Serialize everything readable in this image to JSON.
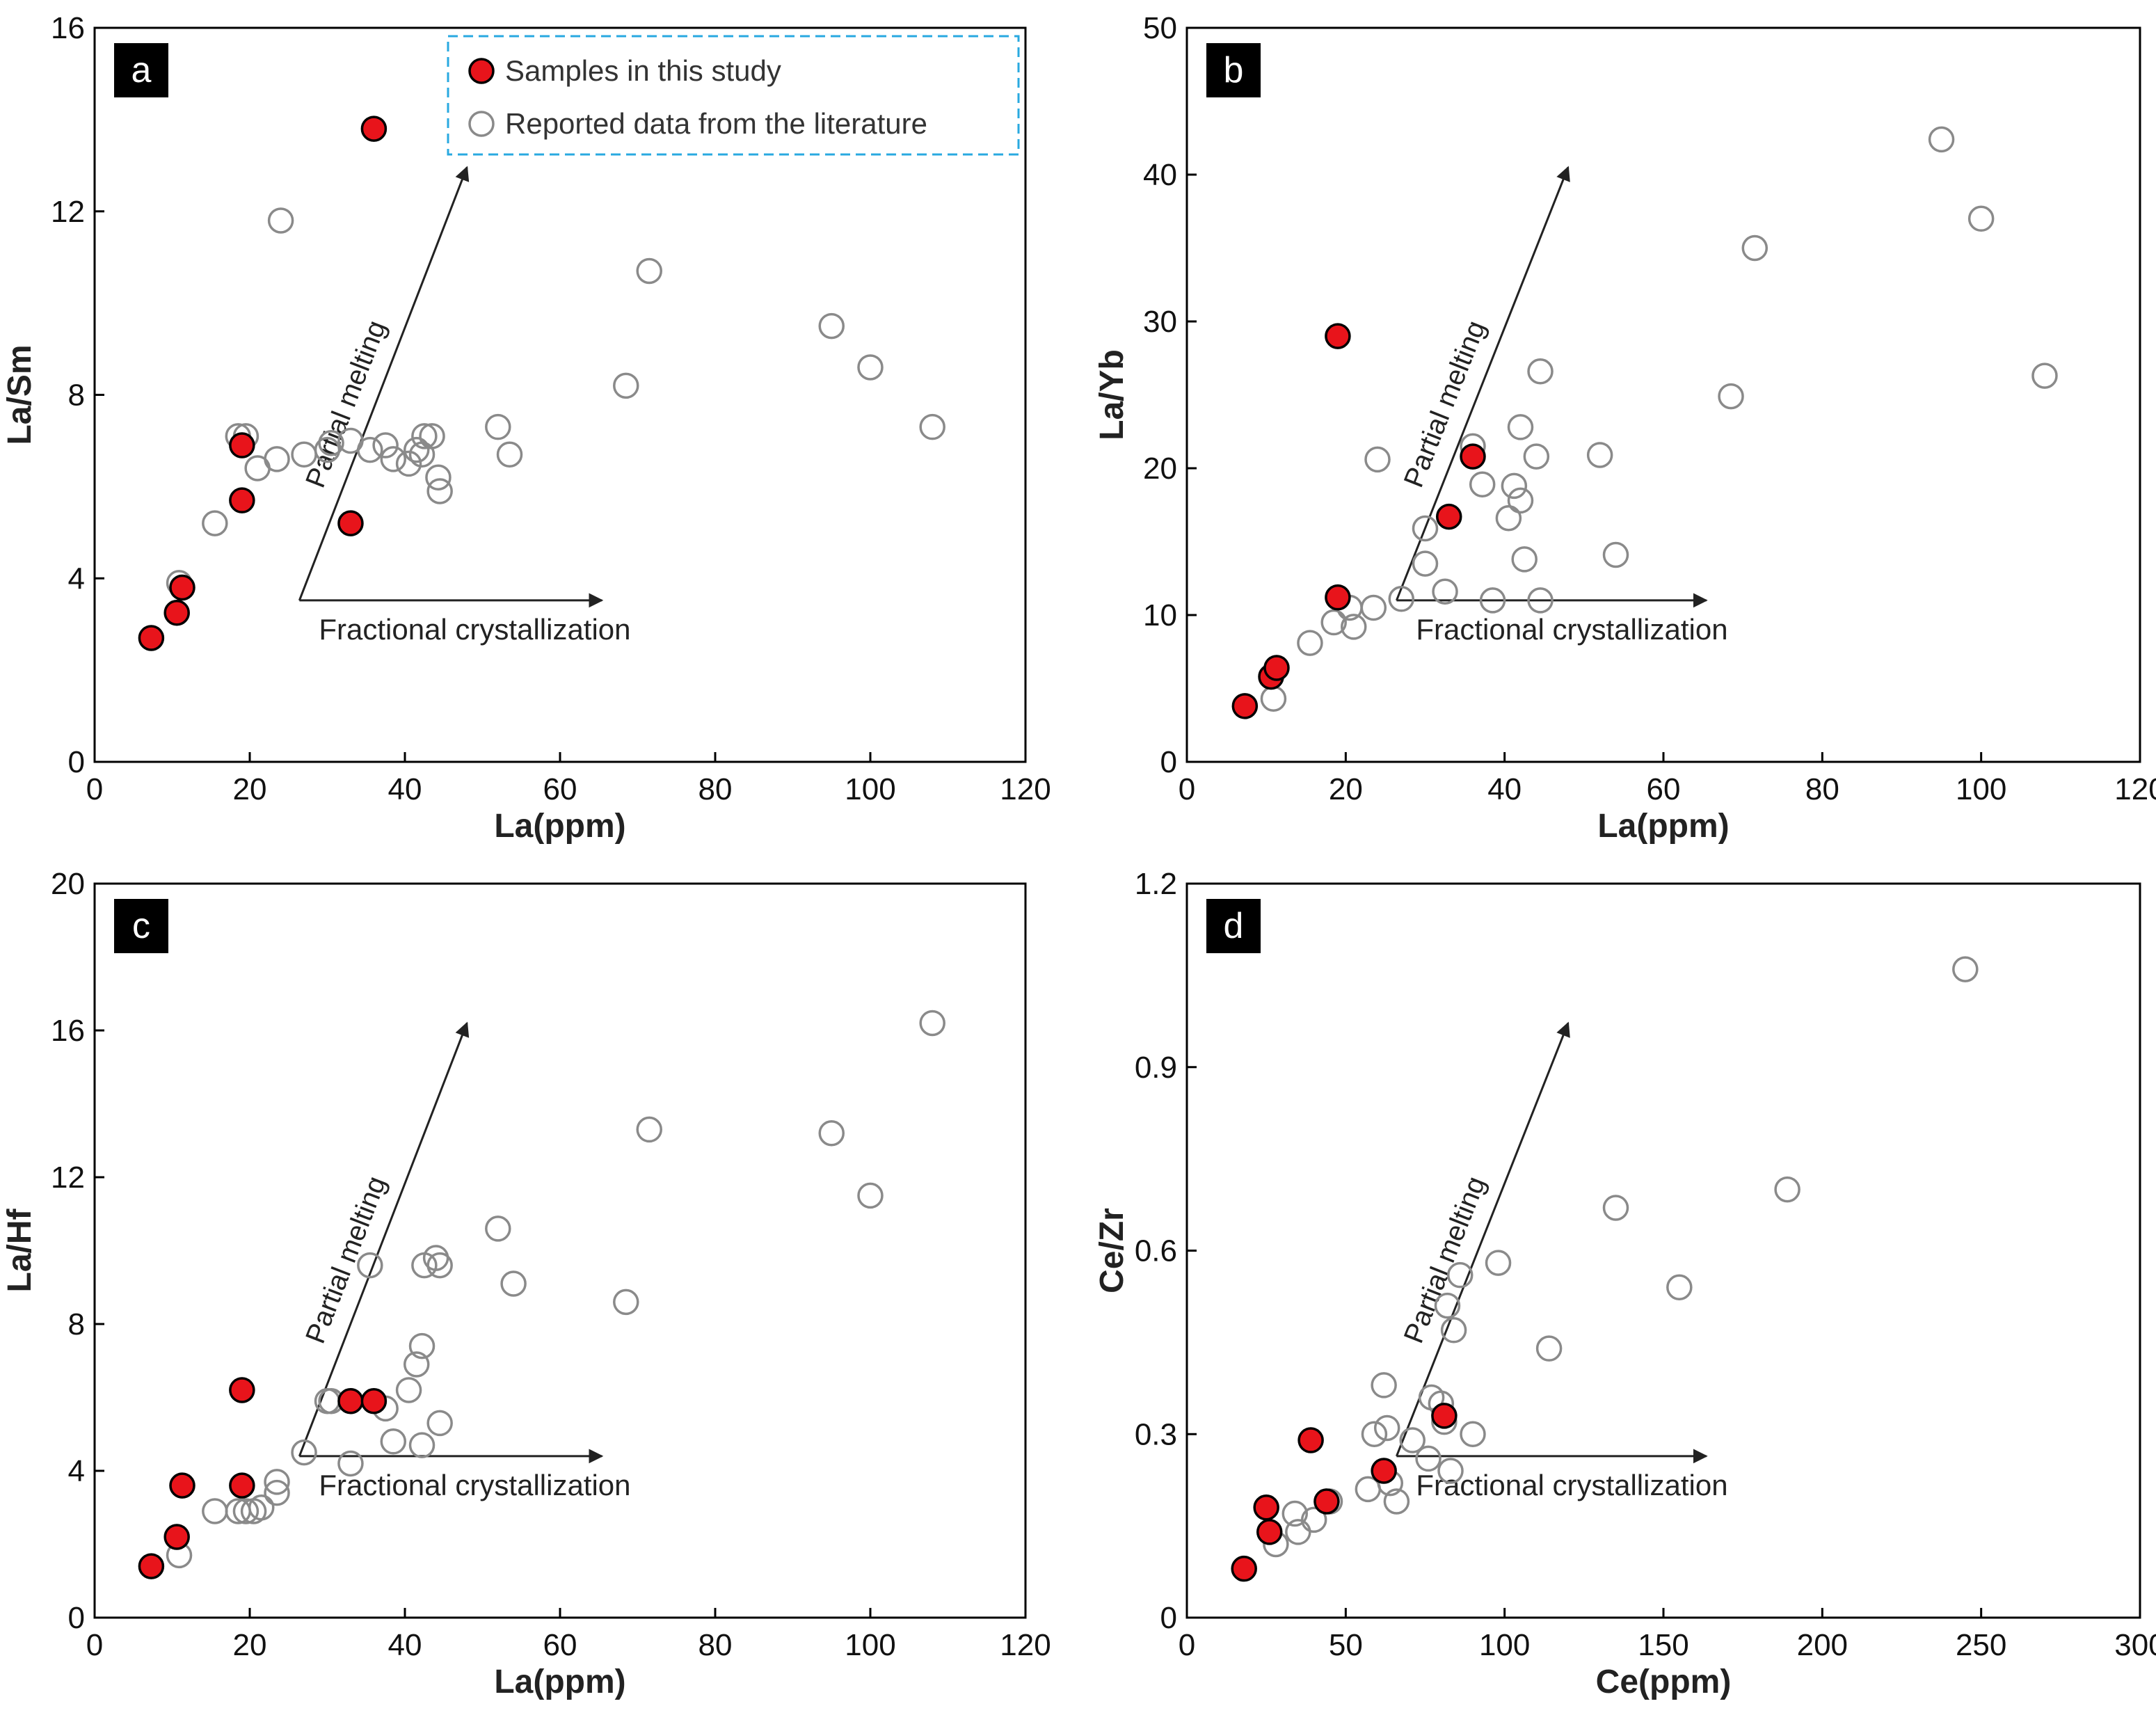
{
  "chart_data": [
    {
      "type": "scatter",
      "panel_label": "a",
      "xlabel": "La(ppm)",
      "ylabel": "La/Sm",
      "xlim": [
        0,
        120
      ],
      "ylim": [
        0,
        16
      ],
      "xticks": [
        0,
        20,
        40,
        60,
        80,
        100,
        120
      ],
      "yticks": [
        0,
        4,
        8,
        12,
        16
      ],
      "legend": {
        "placement": "top-right",
        "items": [
          "Samples in this study",
          "Reported data from the literature"
        ]
      },
      "series": [
        {
          "name": "Samples in this study",
          "points": [
            [
              7.3,
              2.7
            ],
            [
              10.6,
              3.25
            ],
            [
              11.3,
              3.8
            ],
            [
              19,
              5.7
            ],
            [
              19,
              6.9
            ],
            [
              33,
              5.2
            ],
            [
              36,
              13.8
            ]
          ]
        },
        {
          "name": "Reported data from the literature",
          "points": [
            [
              10.9,
              3.9
            ],
            [
              15.5,
              5.2
            ],
            [
              18.5,
              7.1
            ],
            [
              19.5,
              7.1
            ],
            [
              21,
              6.4
            ],
            [
              23.5,
              6.6
            ],
            [
              24,
              11.8
            ],
            [
              27,
              6.7
            ],
            [
              30,
              6.8
            ],
            [
              30.5,
              6.95
            ],
            [
              33,
              7.0
            ],
            [
              35.5,
              6.8
            ],
            [
              37.5,
              6.9
            ],
            [
              38.5,
              6.6
            ],
            [
              40.5,
              6.5
            ],
            [
              41.5,
              6.8
            ],
            [
              42.2,
              6.7
            ],
            [
              42.5,
              7.1
            ],
            [
              43.5,
              7.1
            ],
            [
              44.3,
              6.2
            ],
            [
              44.5,
              5.9
            ],
            [
              52,
              7.3
            ],
            [
              53.5,
              6.7
            ],
            [
              68.5,
              8.2
            ],
            [
              71.5,
              10.7
            ],
            [
              95,
              9.5
            ],
            [
              100,
              8.6
            ],
            [
              108,
              7.3
            ]
          ]
        }
      ],
      "annotations": {
        "diagonal": "Partial melting",
        "horizontal": "Fractional crystallization"
      }
    },
    {
      "type": "scatter",
      "panel_label": "b",
      "xlabel": "La(ppm)",
      "ylabel": "La/Yb",
      "xlim": [
        0,
        120
      ],
      "ylim": [
        0,
        50
      ],
      "xticks": [
        0,
        20,
        40,
        60,
        80,
        100,
        120
      ],
      "yticks": [
        0,
        10,
        20,
        30,
        40,
        50
      ],
      "series": [
        {
          "name": "Samples in this study",
          "points": [
            [
              7.3,
              3.8
            ],
            [
              10.6,
              5.8
            ],
            [
              11.3,
              6.4
            ],
            [
              19,
              11.2
            ],
            [
              19,
              29
            ],
            [
              33,
              16.7
            ],
            [
              36,
              20.8
            ]
          ]
        },
        {
          "name": "Reported data from the literature",
          "points": [
            [
              10.9,
              4.3
            ],
            [
              15.5,
              8.1
            ],
            [
              18.5,
              9.5
            ],
            [
              20.5,
              10.5
            ],
            [
              21,
              9.2
            ],
            [
              23.5,
              10.5
            ],
            [
              24,
              20.6
            ],
            [
              27,
              11.1
            ],
            [
              30,
              15.9
            ],
            [
              30,
              13.5
            ],
            [
              32.5,
              11.6
            ],
            [
              36,
              21.5
            ],
            [
              37.2,
              18.9
            ],
            [
              38.5,
              11.0
            ],
            [
              40.5,
              16.6
            ],
            [
              41.2,
              18.8
            ],
            [
              42,
              22.8
            ],
            [
              42,
              17.8
            ],
            [
              42.5,
              13.8
            ],
            [
              44,
              20.8
            ],
            [
              44.5,
              11.0
            ],
            [
              44.5,
              26.6
            ],
            [
              52,
              20.9
            ],
            [
              54,
              14.1
            ],
            [
              68.5,
              24.9
            ],
            [
              71.5,
              35.0
            ],
            [
              95,
              42.4
            ],
            [
              100,
              37.0
            ],
            [
              108,
              26.3
            ]
          ]
        }
      ],
      "annotations": {
        "diagonal": "Partial melting",
        "horizontal": "Fractional crystallization"
      }
    },
    {
      "type": "scatter",
      "panel_label": "c",
      "xlabel": "La(ppm)",
      "ylabel": "La/Hf",
      "xlim": [
        0,
        120
      ],
      "ylim": [
        0,
        20
      ],
      "xticks": [
        0,
        20,
        40,
        60,
        80,
        100,
        120
      ],
      "yticks": [
        0,
        4,
        8,
        12,
        16,
        20
      ],
      "series": [
        {
          "name": "Samples in this study",
          "points": [
            [
              7.3,
              1.4
            ],
            [
              10.6,
              2.2
            ],
            [
              11.3,
              3.6
            ],
            [
              19,
              3.6
            ],
            [
              19,
              6.2
            ],
            [
              33,
              5.9
            ],
            [
              36,
              5.9
            ]
          ]
        },
        {
          "name": "Reported data from the literature",
          "points": [
            [
              10.9,
              1.7
            ],
            [
              15.5,
              2.9
            ],
            [
              18.5,
              2.9
            ],
            [
              19.5,
              2.9
            ],
            [
              20.5,
              2.9
            ],
            [
              21.5,
              3.0
            ],
            [
              23.5,
              3.4
            ],
            [
              23.5,
              3.7
            ],
            [
              27,
              4.5
            ],
            [
              30,
              5.9
            ],
            [
              30.5,
              5.9
            ],
            [
              33,
              4.2
            ],
            [
              35.5,
              9.6
            ],
            [
              37.5,
              5.7
            ],
            [
              38.5,
              4.8
            ],
            [
              40.5,
              6.2
            ],
            [
              41.5,
              6.9
            ],
            [
              42.2,
              7.4
            ],
            [
              42.2,
              4.7
            ],
            [
              42.5,
              9.6
            ],
            [
              44,
              9.8
            ],
            [
              44.5,
              9.6
            ],
            [
              44.5,
              5.3
            ],
            [
              52,
              10.6
            ],
            [
              54,
              9.1
            ],
            [
              68.5,
              8.6
            ],
            [
              71.5,
              13.3
            ],
            [
              95,
              13.2
            ],
            [
              100,
              11.5
            ],
            [
              108,
              16.2
            ]
          ]
        }
      ],
      "annotations": {
        "diagonal": "Partial melting",
        "horizontal": "Fractional crystallization"
      }
    },
    {
      "type": "scatter",
      "panel_label": "d",
      "xlabel": "Ce(ppm)",
      "ylabel": "Ce/Zr",
      "xlim": [
        0,
        300
      ],
      "ylim": [
        0,
        1.2
      ],
      "xticks": [
        0,
        50,
        100,
        150,
        200,
        250,
        300
      ],
      "yticks": [
        0,
        0.3,
        0.6,
        0.9,
        1.2
      ],
      "ytick_labels": [
        "0",
        "0.3",
        "0.6",
        "0.9",
        "1.2"
      ],
      "series": [
        {
          "name": "Samples in this study",
          "points": [
            [
              18,
              0.08
            ],
            [
              25,
              0.18
            ],
            [
              26,
              0.14
            ],
            [
              39,
              0.29
            ],
            [
              44,
              0.19
            ],
            [
              62,
              0.24
            ],
            [
              81,
              0.33
            ]
          ]
        },
        {
          "name": "Reported data from the literature",
          "points": [
            [
              28,
              0.12
            ],
            [
              34,
              0.17
            ],
            [
              35,
              0.14
            ],
            [
              40,
              0.16
            ],
            [
              45,
              0.19
            ],
            [
              57,
              0.21
            ],
            [
              59,
              0.3
            ],
            [
              62,
              0.38
            ],
            [
              63,
              0.31
            ],
            [
              64,
              0.22
            ],
            [
              66,
              0.19
            ],
            [
              71,
              0.29
            ],
            [
              76,
              0.26
            ],
            [
              77,
              0.36
            ],
            [
              80,
              0.35
            ],
            [
              81,
              0.32
            ],
            [
              82,
              0.51
            ],
            [
              83,
              0.24
            ],
            [
              84,
              0.47
            ],
            [
              86,
              0.56
            ],
            [
              90,
              0.3
            ],
            [
              98,
              0.58
            ],
            [
              114,
              0.44
            ],
            [
              135,
              0.67
            ],
            [
              155,
              0.54
            ],
            [
              189,
              0.7
            ],
            [
              245,
              1.06
            ]
          ]
        }
      ],
      "annotations": {
        "diagonal": "Partial melting",
        "horizontal": "Fractional crystallization"
      }
    }
  ],
  "colors": {
    "sample_fill": "#e8141b",
    "sample_stroke": "#000000",
    "literature_stroke": "#8a8a8a",
    "legend_border": "#29a9e0",
    "axis": "#000000"
  }
}
